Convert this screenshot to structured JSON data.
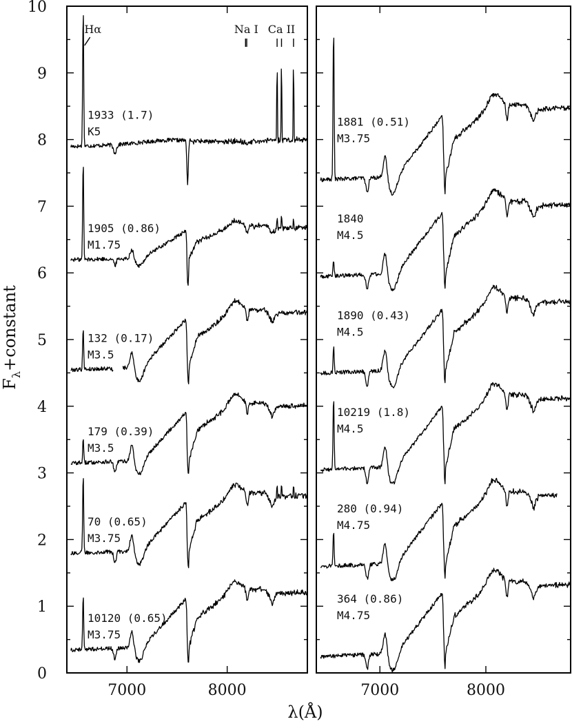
{
  "chart_data": {
    "type": "line",
    "xlabel": "λ(Å)",
    "ylabel": "F_λ+constant",
    "xlim": [
      6400,
      8800
    ],
    "ylim": [
      0,
      10
    ],
    "x_ticks": [
      "7000",
      "8000"
    ],
    "y_ticks": [
      "0",
      "1",
      "2",
      "3",
      "4",
      "5",
      "6",
      "7",
      "8",
      "9",
      "10"
    ],
    "line_labels": [
      {
        "text": "Hα",
        "x": 6563
      },
      {
        "text": "Na I",
        "x": 8190
      },
      {
        "text": "Ca II",
        "x": 8542
      }
    ],
    "panels": [
      {
        "name": "left",
        "spectra": [
          {
            "id": "1933 (1.7)",
            "type": "K5",
            "offset": 7.9,
            "profile": "K5",
            "halpha": 2.1
          },
          {
            "id": "1905 (0.86)",
            "type": "M1.75",
            "offset": 6.2,
            "profile": "M1",
            "halpha": 1.5
          },
          {
            "id": "132 (0.17)",
            "type": "M3.5",
            "offset": 4.55,
            "profile": "M3",
            "halpha": 0.65,
            "gap": [
              6860,
              6960
            ]
          },
          {
            "id": "179 (0.39)",
            "type": "M3.5",
            "offset": 3.15,
            "profile": "M3",
            "halpha": 0.35
          },
          {
            "id": "70 (0.65)",
            "type": "M3.75",
            "offset": 1.8,
            "profile": "M3",
            "halpha": 1.2
          },
          {
            "id": "10120 (0.65)",
            "type": "M3.75",
            "offset": 0.35,
            "profile": "M3",
            "halpha": 0.85
          }
        ]
      },
      {
        "name": "right",
        "spectra": [
          {
            "id": "1881 (0.51)",
            "type": "M3.75",
            "offset": 7.4,
            "profile": "M4",
            "halpha": 2.3
          },
          {
            "id": "1840",
            "type": "M4.5",
            "offset": 5.95,
            "profile": "M4",
            "halpha": 0.25
          },
          {
            "id": "1890 (0.43)",
            "type": "M4.5",
            "offset": 4.5,
            "profile": "M4",
            "halpha": 0.4
          },
          {
            "id": "10219 (1.8)",
            "type": "M4.5",
            "offset": 3.05,
            "profile": "M4",
            "halpha": 1.1
          },
          {
            "id": "280 (0.94)",
            "type": "M4.75",
            "offset": 1.6,
            "profile": "M4",
            "halpha": 0.55,
            "end": 8670
          },
          {
            "id": "364 (0.86)",
            "type": "M4.75",
            "offset": 0.25,
            "profile": "M4",
            "halpha": 0.0
          }
        ]
      }
    ]
  }
}
